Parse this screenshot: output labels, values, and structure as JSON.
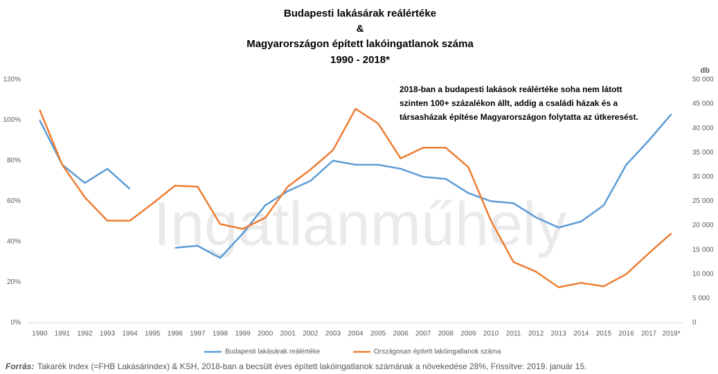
{
  "chart_data": {
    "type": "line",
    "title": [
      "Budapesti lakásárak reálértéke",
      "&",
      "Magyarországon épített lakóingatlanok száma",
      "1990 - 2018*"
    ],
    "annotation": [
      "2018-ban a budapesti lakások reálértéke soha nem látott",
      "szinten 100+ százalékon állt, addig a családi házak és a",
      "társasházak építése Magyarországon folytatta az útkeresést."
    ],
    "watermark": "Ingatlanműhely",
    "y2_label": "db",
    "source_label": "Forrás:",
    "source_text": "Takarék index (=FHB Lakásárindex) & KSH, 2018-ban a becsült éves épített lakóingatlanok számának a növekedése 28%, Frissítve: 2019. január 15.",
    "categories": [
      "1990",
      "1991",
      "1992",
      "1993",
      "1994",
      "1995",
      "1996",
      "1997",
      "1998",
      "1999",
      "2000",
      "2001",
      "2002",
      "2003",
      "2004",
      "2005",
      "2006",
      "2007",
      "2008",
      "2009",
      "2010",
      "2011",
      "2012",
      "2013",
      "2014",
      "2015",
      "2016",
      "2017",
      "2018*"
    ],
    "series": [
      {
        "name": "Budapesti lakásárak reálértéke",
        "color": "#5b9bd5",
        "axis": "y",
        "values": [
          100,
          78,
          69,
          76,
          66,
          null,
          37,
          38,
          32,
          44,
          58,
          65,
          70,
          80,
          78,
          78,
          76,
          72,
          71,
          64,
          60,
          59,
          52,
          47,
          50,
          58,
          78,
          90,
          103
        ]
      },
      {
        "name": "Országosan épített lakóingatlanok száma",
        "color": "#ed7d31",
        "axis": "y2",
        "values": [
          43800,
          32500,
          25800,
          21000,
          21000,
          24500,
          28200,
          28000,
          20300,
          19300,
          21600,
          28000,
          31500,
          35500,
          44000,
          41000,
          33800,
          36000,
          36000,
          32000,
          21000,
          12500,
          10500,
          7300,
          8200,
          7500,
          10000,
          14300,
          18400
        ]
      }
    ],
    "ylim": [
      0,
      120
    ],
    "yticks": [
      {
        "value": 0,
        "label": "0%"
      },
      {
        "value": 20,
        "label": "20%"
      },
      {
        "value": 40,
        "label": "40%"
      },
      {
        "value": 60,
        "label": "60%"
      },
      {
        "value": 80,
        "label": "80%"
      },
      {
        "value": 100,
        "label": "100%"
      },
      {
        "value": 120,
        "label": "120%"
      }
    ],
    "y2lim": [
      0,
      50000
    ],
    "y2ticks": [
      0,
      {
        "value": 5000,
        "label": "5 000"
      },
      {
        "value": 10000,
        "label": "10 000"
      },
      {
        "value": 15000,
        "label": "15 000"
      },
      {
        "value": 20000,
        "label": "20 000"
      },
      {
        "value": 25000,
        "label": "25 000"
      },
      {
        "value": 30000,
        "label": "30 000"
      },
      {
        "value": 35000,
        "label": "35 000"
      },
      {
        "value": 40000,
        "label": "40 000"
      },
      {
        "value": 45000,
        "label": "45 000"
      },
      {
        "value": 50000,
        "label": "50 000"
      }
    ],
    "grid": false,
    "legend": "bottom"
  }
}
